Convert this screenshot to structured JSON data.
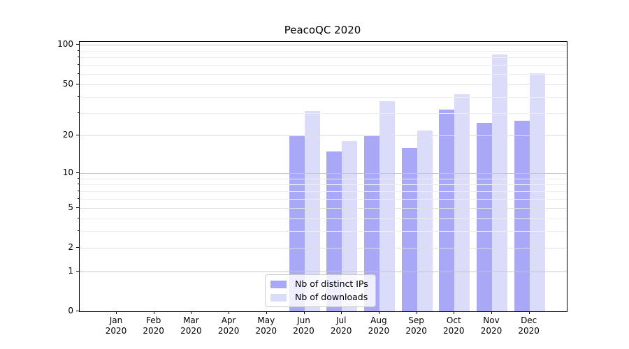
{
  "chart_data": {
    "type": "bar",
    "title": "PeacoQC 2020",
    "categories": [
      "Jan",
      "Feb",
      "Mar",
      "Apr",
      "May",
      "Jun",
      "Jul",
      "Aug",
      "Sep",
      "Oct",
      "Nov",
      "Dec"
    ],
    "year_label": "2020",
    "series": [
      {
        "name": "Nb of distinct IPs",
        "color": "#a8a8f7",
        "values": [
          0,
          0,
          0,
          0,
          0,
          20,
          15,
          20,
          16,
          32,
          25,
          26
        ]
      },
      {
        "name": "Nb of downloads",
        "color": "#dbdbfa",
        "values": [
          0,
          0,
          0,
          0,
          0,
          31,
          18,
          37,
          22,
          42,
          85,
          61
        ]
      }
    ],
    "xlabel": "",
    "ylabel": "",
    "y_axis": {
      "scale": "log10(1+y)",
      "tick_values": [
        0,
        1,
        2,
        5,
        10,
        20,
        50,
        100
      ],
      "decade_values": [
        1,
        10,
        100
      ],
      "ylim": [
        0,
        110
      ],
      "grid": "on"
    },
    "legend": {
      "position": "lower-center-inside",
      "entries": [
        "Nb of distinct IPs",
        "Nb of downloads"
      ]
    }
  },
  "colors": {
    "spine": "#000000",
    "text": "#000000",
    "grid_decade": "#c6c6c6",
    "grid_mid": "#e0e0e0",
    "grid_minor": "#eeeeee",
    "legend_border": "#cccccc",
    "legend_background": "rgba(255,255,255,0.8)"
  }
}
